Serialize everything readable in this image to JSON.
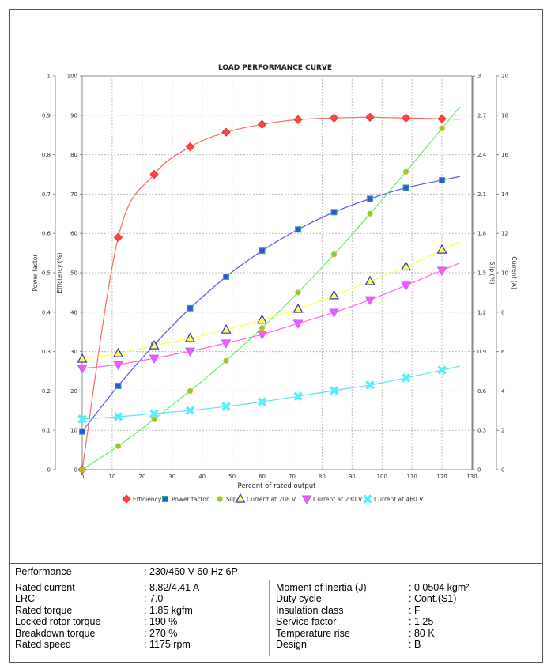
{
  "chart_data": {
    "type": "line",
    "title": "LOAD PERFORMANCE CURVE",
    "xlabel": "Percent of rated output",
    "xlim": [
      0,
      130
    ],
    "x_ticks": [
      0,
      10,
      20,
      30,
      40,
      50,
      60,
      70,
      80,
      90,
      100,
      110,
      120,
      130
    ],
    "axes": {
      "power_factor": {
        "label": "Power factor",
        "lim": [
          0,
          1
        ],
        "ticks": [
          "0",
          "0.1",
          "0.2",
          "0.3",
          "0.4",
          "0.5",
          "0.6",
          "0.7",
          "0.8",
          "0.9",
          "1"
        ]
      },
      "efficiency": {
        "label": "Efficiency (%)",
        "lim": [
          0,
          100
        ],
        "ticks": [
          "0",
          "10",
          "20",
          "30",
          "40",
          "50",
          "60",
          "70",
          "80",
          "90",
          "100"
        ]
      },
      "slip": {
        "label": "Slip (%)",
        "lim": [
          0,
          3
        ],
        "ticks": [
          "0",
          "0.3",
          "0.6",
          "0.9",
          "1.2",
          "1.5",
          "1.8",
          "2.1",
          "2.4",
          "2.7",
          "3"
        ]
      },
      "current": {
        "label": "Current (A)",
        "lim": [
          0,
          20
        ],
        "ticks": [
          "0",
          "2",
          "4",
          "6",
          "8",
          "10",
          "12",
          "14",
          "16",
          "18",
          "20"
        ]
      }
    },
    "grid": true,
    "legend_position": "bottom",
    "x": [
      0,
      12,
      24,
      36,
      48,
      60,
      72,
      84,
      96,
      108,
      120
    ],
    "series": [
      {
        "name": "Efficiency",
        "axis": "efficiency",
        "color": "#ff4444",
        "line": "#ff6666",
        "marker": "diamond",
        "values": [
          0,
          59,
          75,
          82,
          85.7,
          87.7,
          88.9,
          89.3,
          89.5,
          89.3,
          89.1
        ]
      },
      {
        "name": "Power factor",
        "axis": "power_factor",
        "color": "#3355dd",
        "line": "#5555ee",
        "marker": "square",
        "values": [
          0.097,
          0.213,
          0.317,
          0.41,
          0.49,
          0.556,
          0.61,
          0.654,
          0.688,
          0.716,
          0.735
        ]
      },
      {
        "name": "Slip",
        "axis": "slip",
        "color": "#66dd33",
        "line": "#66ee66",
        "marker": "circle",
        "values": [
          0,
          0.18,
          0.385,
          0.6,
          0.83,
          1.08,
          1.35,
          1.64,
          1.95,
          2.27,
          2.6
        ]
      },
      {
        "name": "Current at 208 V",
        "axis": "current",
        "color": "#ffff55",
        "line": "#ffff44",
        "marker": "triangle",
        "values": [
          5.62,
          5.9,
          6.3,
          6.67,
          7.1,
          7.6,
          8.15,
          8.84,
          9.56,
          10.3,
          11.16
        ]
      },
      {
        "name": "Current at 230 V",
        "axis": "current",
        "color": "#ff55ff",
        "line": "#ff66ee",
        "marker": "triangle-down",
        "values": [
          5.14,
          5.34,
          5.66,
          6.02,
          6.43,
          6.87,
          7.43,
          7.99,
          8.63,
          9.36,
          10.12
        ]
      },
      {
        "name": "Current at 460 V",
        "axis": "current",
        "color": "#55eeff",
        "line": "#66ddee",
        "marker": "x",
        "values": [
          2.57,
          2.69,
          2.85,
          3.01,
          3.21,
          3.45,
          3.73,
          4.02,
          4.3,
          4.66,
          5.06
        ]
      }
    ]
  },
  "specs": {
    "performance": {
      "label": "Performance",
      "value": ": 230/460 V 60 Hz 6P"
    },
    "left": [
      {
        "label": "Rated current",
        "value": ": 8.82/4.41 A"
      },
      {
        "label": "LRC",
        "value": ": 7.0"
      },
      {
        "label": "Rated torque",
        "value": ": 1.85 kgfm"
      },
      {
        "label": "Locked rotor torque",
        "value": ": 190 %"
      },
      {
        "label": "Breakdown torque",
        "value": ": 270 %"
      },
      {
        "label": "Rated speed",
        "value": ": 1175 rpm"
      }
    ],
    "right": [
      {
        "label": "Moment of inertia (J)",
        "value": ": 0.0504 kgm²"
      },
      {
        "label": "Duty cycle",
        "value": ": Cont.(S1)"
      },
      {
        "label": "Insulation class",
        "value": ": F"
      },
      {
        "label": "Service factor",
        "value": ": 1.25"
      },
      {
        "label": "Temperature rise",
        "value": ": 80 K"
      },
      {
        "label": "Design",
        "value": ": B"
      }
    ]
  }
}
